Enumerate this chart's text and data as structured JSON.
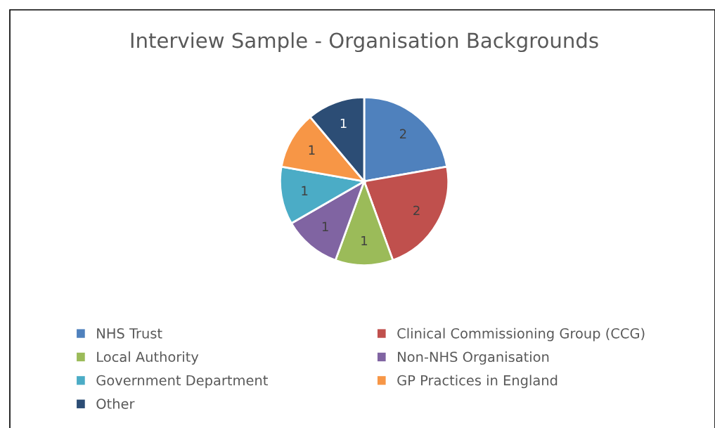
{
  "chart_data": {
    "type": "pie",
    "title": "Interview Sample - Organisation Backgrounds",
    "categories": [
      "NHS Trust",
      "Clinical Commissioning Group (CCG)",
      "Local Authority",
      "Non-NHS Organisation",
      "Government Department",
      "GP Practices in England",
      "Other"
    ],
    "values": [
      2,
      2,
      1,
      1,
      1,
      1,
      1
    ],
    "colors": [
      "#4f81bd",
      "#c0504d",
      "#9bbb59",
      "#8064a2",
      "#4bacc6",
      "#f79646",
      "#2c4d75"
    ],
    "data_labels": true,
    "legend": "bottom"
  }
}
